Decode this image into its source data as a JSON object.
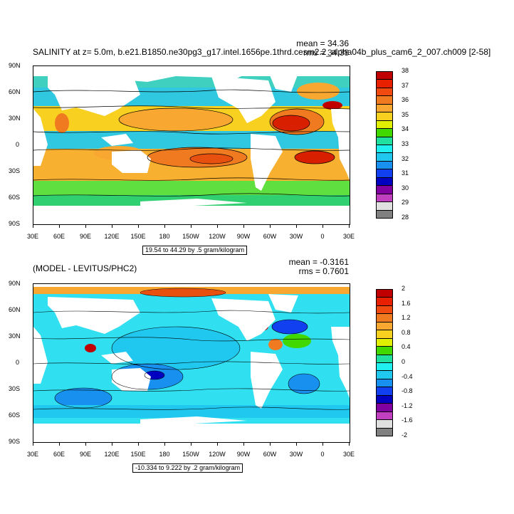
{
  "panels": [
    {
      "title": "SALINITY at z=   5.0m, b.e21.B1850.ne30pg3_g17.intel.1656pe.1thrd.cesm2.2_alpha04b_plus_cam6_2_007.ch009 [2-58]",
      "mean_label": "mean = 34.36",
      "rms_label": "rms = 34.38",
      "range_label": "19.54 to 44.29 by .5 gram/kilogram",
      "colorbar_labels": [
        "38",
        "37",
        "36",
        "35",
        "34",
        "33",
        "32",
        "31",
        "30",
        "29",
        "28"
      ],
      "colorbar_colors": [
        "#c00000",
        "#e82000",
        "#f04a10",
        "#f07a20",
        "#f8a830",
        "#f8d020",
        "#e0f000",
        "#40d800",
        "#20e0a0",
        "#20f0f0",
        "#20c8f0",
        "#1890f0",
        "#1040f0",
        "#0000c0",
        "#8000a0",
        "#c040c0",
        "#e0e0e0",
        "#808080"
      ]
    },
    {
      "title": "(MODEL - LEVITUS/PHC2)",
      "mean_label": "mean = -0.3161",
      "rms_label": "rms = 0.7601",
      "range_label": "-10.334 to 9.222 by .2 gram/kilogram",
      "colorbar_labels": [
        "2",
        "1.6",
        "1.2",
        "0.8",
        "0.4",
        "0",
        "-0.4",
        "-0.8",
        "-1.2",
        "-1.6",
        "-2"
      ],
      "colorbar_colors": [
        "#c00000",
        "#e82000",
        "#f04a10",
        "#f07a20",
        "#f8a830",
        "#f8d020",
        "#e0f000",
        "#40d800",
        "#20e0a0",
        "#20f0f0",
        "#20c8f0",
        "#1890f0",
        "#1040f0",
        "#0000c0",
        "#8000a0",
        "#c040c0",
        "#e0e0e0",
        "#808080"
      ]
    }
  ],
  "lat_labels": [
    "90N",
    "60N",
    "30N",
    "0",
    "30S",
    "60S",
    "90S"
  ],
  "lon_labels": [
    "30E",
    "60E",
    "90E",
    "120E",
    "150E",
    "180",
    "150W",
    "120W",
    "90W",
    "60W",
    "30W",
    "0",
    "30E"
  ]
}
